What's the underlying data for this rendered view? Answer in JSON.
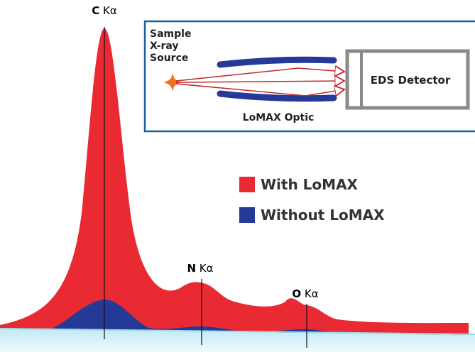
{
  "peaks": [
    {
      "element": "C",
      "line": "Kα"
    },
    {
      "element": "N",
      "line": "Kα"
    },
    {
      "element": "O",
      "line": "Kα"
    }
  ],
  "inset": {
    "source": [
      "Sample",
      "X-ray",
      "Source"
    ],
    "detector": "EDS Detector",
    "optic": "LoMAX Optic"
  },
  "legend": [
    "With LoMAX",
    "Without LoMAX"
  ]
}
